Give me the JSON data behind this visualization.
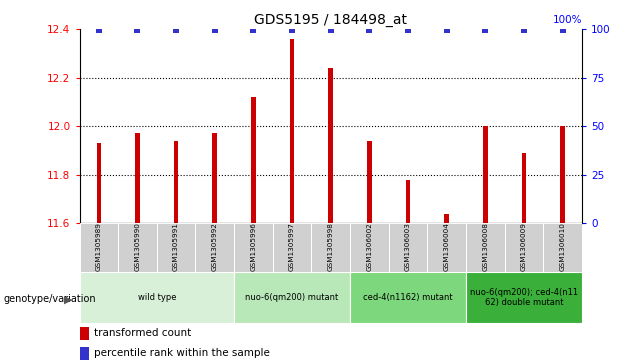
{
  "title": "GDS5195 / 184498_at",
  "samples": [
    "GSM1305989",
    "GSM1305990",
    "GSM1305991",
    "GSM1305992",
    "GSM1305996",
    "GSM1305997",
    "GSM1305998",
    "GSM1306002",
    "GSM1306003",
    "GSM1306004",
    "GSM1306008",
    "GSM1306009",
    "GSM1306010"
  ],
  "bar_values": [
    11.93,
    11.97,
    11.94,
    11.97,
    12.12,
    12.36,
    12.24,
    11.94,
    11.78,
    11.64,
    12.0,
    11.89,
    12.0
  ],
  "bar_color": "#cc0000",
  "percentile_color": "#3333cc",
  "ylim_left": [
    11.6,
    12.4
  ],
  "ylim_right": [
    0,
    100
  ],
  "yticks_left": [
    11.6,
    11.8,
    12.0,
    12.2,
    12.4
  ],
  "yticks_right": [
    0,
    25,
    50,
    75,
    100
  ],
  "grid_values": [
    11.8,
    12.0,
    12.2
  ],
  "groups": [
    {
      "label": "wild type",
      "indices": [
        0,
        3
      ],
      "color": "#d8f0d8"
    },
    {
      "label": "nuo-6(qm200) mutant",
      "indices": [
        4,
        6
      ],
      "color": "#b8e8b8"
    },
    {
      "label": "ced-4(n1162) mutant",
      "indices": [
        7,
        9
      ],
      "color": "#7dd87d"
    },
    {
      "label": "nuo-6(qm200); ced-4(n11\n62) double mutant",
      "indices": [
        10,
        12
      ],
      "color": "#3ab03a"
    }
  ],
  "group_label_prefix": "genotype/variation",
  "bar_width": 0.12
}
